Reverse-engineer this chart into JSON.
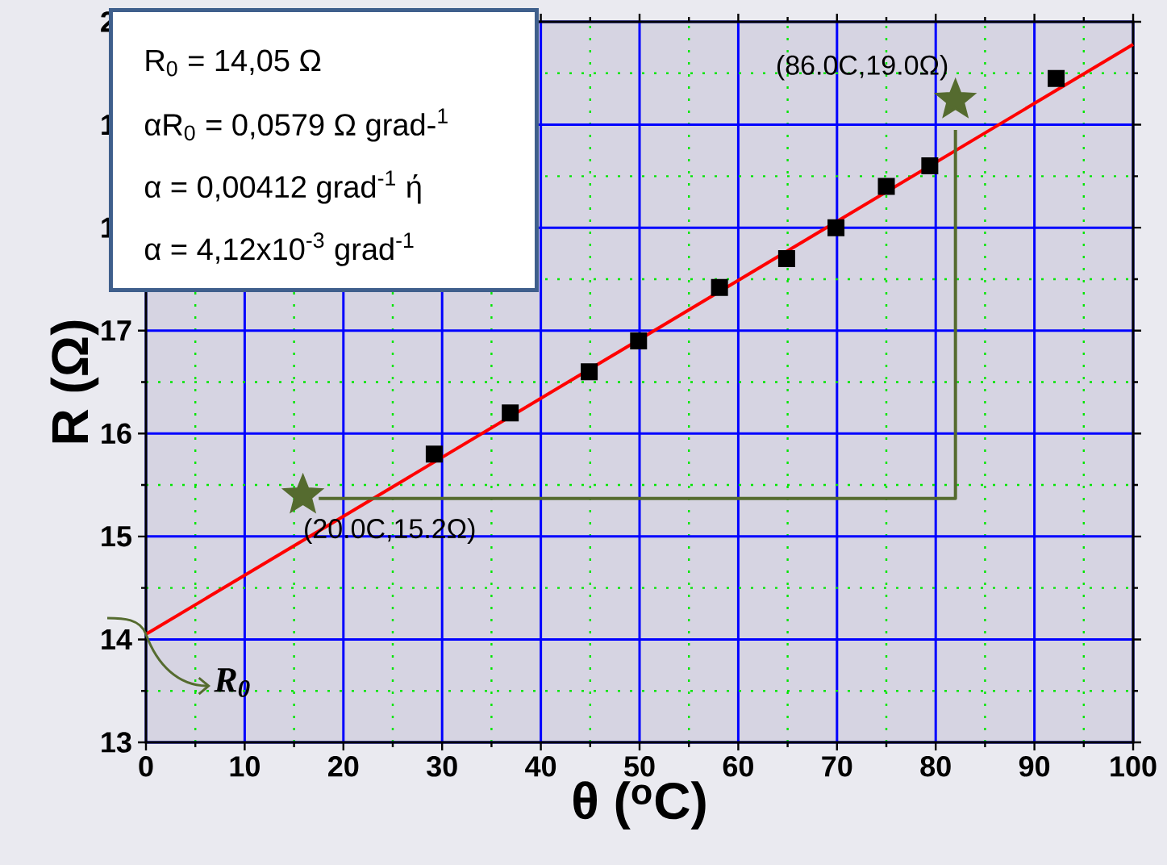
{
  "chart_data": {
    "type": "scatter",
    "xlabel": "θ ($^{o}$C)",
    "ylabel": "R (Ω)",
    "xlim": [
      0,
      100
    ],
    "xticks": [
      0,
      {
        "value": 5,
        "label": null
      },
      10,
      {
        "value": 15,
        "label": null
      },
      20,
      {
        "value": 25,
        "label": null
      },
      30,
      {
        "value": 35,
        "label": null
      },
      40,
      {
        "value": 45,
        "label": null
      },
      50,
      {
        "value": 55,
        "label": null
      },
      60,
      {
        "value": 65,
        "label": null
      },
      70,
      {
        "value": 75,
        "label": null
      },
      80,
      {
        "value": 85,
        "label": null
      },
      90,
      {
        "value": 95,
        "label": null
      },
      100
    ],
    "ylim": [
      13,
      20
    ],
    "yticks": [
      13,
      {
        "value": 13.5,
        "label": null
      },
      14,
      {
        "value": 14.5,
        "label": null
      },
      15,
      {
        "value": 15.5,
        "label": null
      },
      16,
      {
        "value": 16.5,
        "label": null
      },
      17,
      {
        "value": 17.5,
        "label": null
      },
      18,
      {
        "value": 18.5,
        "label": null
      },
      19,
      {
        "value": 19.5,
        "label": null
      },
      20
    ],
    "grid": true,
    "series": [
      {
        "type": "scatter",
        "marker": "square",
        "color": "#000000",
        "x": [
          29.2,
          36.9,
          44.9,
          49.9,
          58.1,
          64.9,
          69.9,
          75.0,
          79.4,
          92.2
        ],
        "values": [
          15.8,
          16.2,
          16.6,
          16.9,
          17.42,
          17.7,
          18.0,
          18.4,
          18.6,
          19.45
        ]
      },
      {
        "type": "line",
        "marker": "none",
        "color": "#ff0000",
        "x": [
          0,
          100
        ],
        "values": [
          14.05,
          19.78
        ]
      },
      {
        "type": "line",
        "marker": "none",
        "color": "#556b2f",
        "x": [
          17.5,
          82.0,
          82.0
        ],
        "values": [
          15.37,
          15.37,
          18.95
        ]
      },
      {
        "type": "scatter",
        "marker": "star",
        "color": "#556b2f",
        "x": [
          15.9,
          82.0
        ],
        "values": [
          15.4,
          19.24
        ]
      }
    ],
    "annotations": [
      "R$_{0}$ = 14,05 Ω",
      "αR$_{0}$ = 0,0579 Ω grad-$^{1}$",
      "α = 0,00412 grad$^{-1}$   ή",
      "α = 4,12x10$^{-3}$ grad$^{-1}$",
      {
        "text": "(20.0C,15.2Ω)",
        "x": 15.9,
        "y": 15.4
      },
      {
        "text": "(86.0C,19.0Ω)",
        "x": 82.0,
        "y": 19.24
      },
      {
        "text": "R$_{0}$",
        "x": 0,
        "y": 14.05
      }
    ]
  }
}
